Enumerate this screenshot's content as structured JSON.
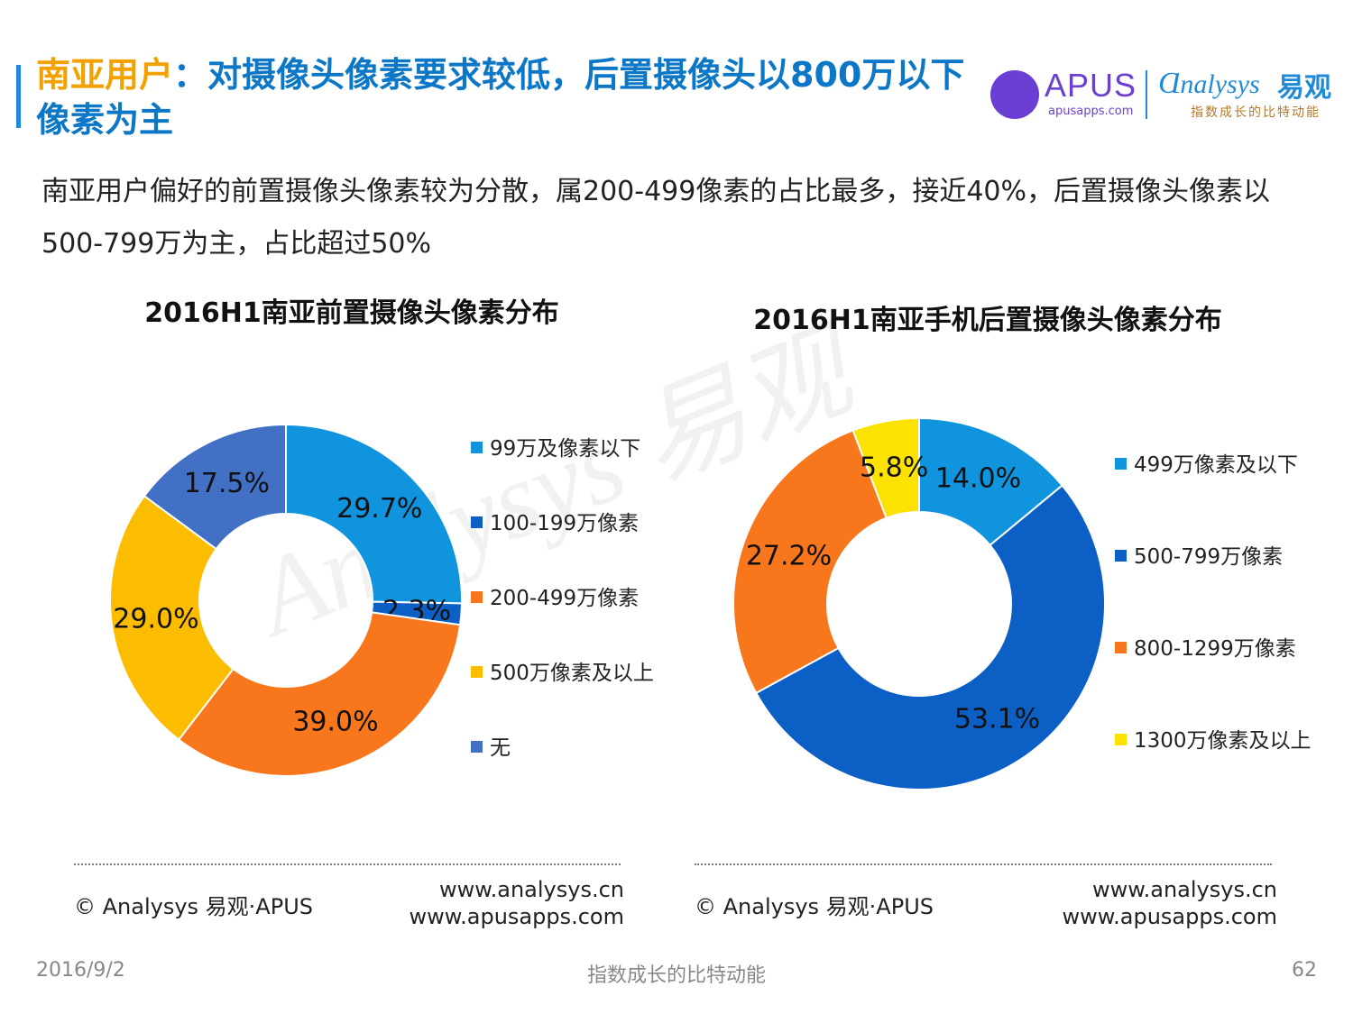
{
  "header": {
    "title_highlight": "南亚用户",
    "title_rest": "：对摄像头像素要求较低，后置摄像头以800万以下像素为主",
    "logo_apus": "APUS",
    "logo_apus_sub": "apusapps.com",
    "logo_analysys": "nalysys",
    "logo_analysys_cn": "易观",
    "logo_slogan": "指数成长的比特动能"
  },
  "description": "南亚用户偏好的前置摄像头像素较为分散，属200-499像素的占比最多，接近40%，后置摄像头像素以500-799万为主，占比超过50%",
  "watermark": "Analysys 易观",
  "chart_data": [
    {
      "type": "pie",
      "donut": true,
      "title": "2016H1南亚前置摄像头像素分布",
      "legend_position": "right",
      "slices": [
        {
          "label": "99万及像素以下",
          "value": 29.7,
          "display": "29.7%",
          "color": "#0f94dd"
        },
        {
          "label": "100-199万像素",
          "value": 2.3,
          "display": "2.3%",
          "color": "#0b5fc5"
        },
        {
          "label": "200-499万像素",
          "value": 39.0,
          "display": "39.0%",
          "color": "#f8771c"
        },
        {
          "label": "500万像素及以上",
          "value": 29.0,
          "display": "29.0%",
          "color": "#fcbc00"
        },
        {
          "label": "无",
          "value": 17.5,
          "display": "17.5%",
          "color": "#4270c4"
        }
      ]
    },
    {
      "type": "pie",
      "donut": true,
      "title": "2016H1南亚手机后置摄像头像素分布",
      "legend_position": "right",
      "slices": [
        {
          "label": "499万像素及以下",
          "value": 14.0,
          "display": "14.0%",
          "color": "#0f94dd"
        },
        {
          "label": "500-799万像素",
          "value": 53.1,
          "display": "53.1%",
          "color": "#0b5fc5"
        },
        {
          "label": "800-1299万像素",
          "value": 27.2,
          "display": "27.2%",
          "color": "#f8771c"
        },
        {
          "label": "1300万像素及以上",
          "value": 5.8,
          "display": "5.8%",
          "color": "#fce200"
        }
      ]
    }
  ],
  "footer": {
    "left": {
      "copyright": "© Analysys 易观·APUS",
      "url1": "www.analysys.cn",
      "url2": "www.apusapps.com"
    },
    "right": {
      "copyright": "© Analysys 易观·APUS",
      "url1": "www.analysys.cn",
      "url2": "www.apusapps.com"
    }
  },
  "page": {
    "date": "2016/9/2",
    "slogan": "指数成长的比特动能",
    "number": "62"
  }
}
